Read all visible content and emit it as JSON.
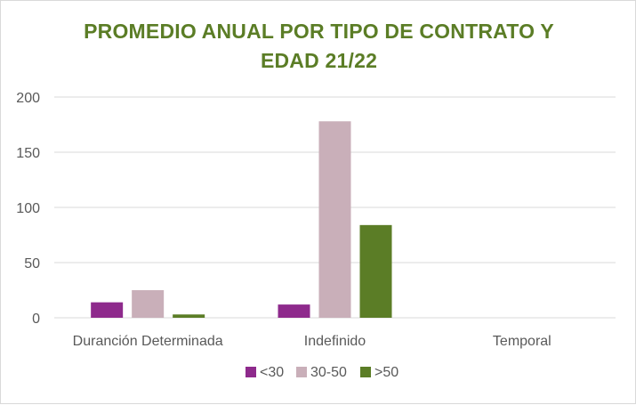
{
  "chart_data": {
    "type": "bar",
    "title_line1": "PROMEDIO ANUAL POR TIPO DE CONTRATO Y",
    "title_line2": "EDAD 21/22",
    "categories": [
      "Duranción Determinada",
      "Indefinido",
      "Temporal"
    ],
    "series": [
      {
        "name": "<30",
        "color": "#8e2a8c",
        "values": [
          14,
          12,
          0
        ]
      },
      {
        "name": "30-50",
        "color": "#c9afb9",
        "values": [
          25,
          178,
          0
        ]
      },
      {
        "name": ">50",
        "color": "#5b7d26",
        "values": [
          3,
          84,
          0
        ]
      }
    ],
    "ylim": [
      0,
      200
    ],
    "yticks": [
      0,
      50,
      100,
      150,
      200
    ],
    "grid": true,
    "legend_position": "bottom"
  }
}
